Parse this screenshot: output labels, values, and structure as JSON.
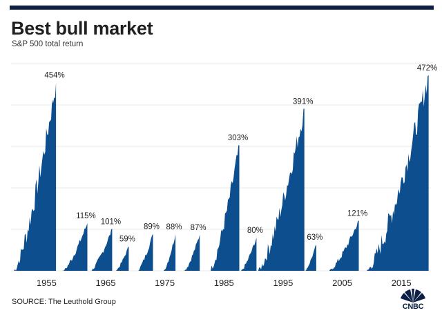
{
  "header": {
    "title": "Best bull market",
    "subtitle": "S&P 500 total return"
  },
  "footer": {
    "source": "SOURCE: The Leuthold Group",
    "logo": "CNBC"
  },
  "colors": {
    "series": "#0d4e8e",
    "grid": "#e8e8e8",
    "text": "#1f1f1f"
  },
  "chart_data": {
    "type": "area",
    "title": "Best bull market",
    "subtitle": "S&P 500 total return",
    "xlabel": "",
    "ylabel": "",
    "unit": "%",
    "xlim": [
      1949,
      2020
    ],
    "ylim": [
      0,
      500
    ],
    "y_gridlines": [
      100,
      200,
      300,
      400,
      500
    ],
    "grid": "horizontal",
    "x_ticks": [
      1955,
      1965,
      1975,
      1985,
      1995,
      2005,
      2015
    ],
    "bull_markets": [
      {
        "start": 1949.5,
        "end": 1956.6,
        "peak": 454,
        "label": "454%"
      },
      {
        "start": 1957.8,
        "end": 1961.9,
        "peak": 115,
        "label": "115%"
      },
      {
        "start": 1962.5,
        "end": 1966.1,
        "peak": 101,
        "label": "101%"
      },
      {
        "start": 1966.7,
        "end": 1968.9,
        "peak": 59,
        "label": "59%"
      },
      {
        "start": 1970.4,
        "end": 1973.0,
        "peak": 89,
        "label": "89%"
      },
      {
        "start": 1974.8,
        "end": 1976.8,
        "peak": 88,
        "label": "88%"
      },
      {
        "start": 1978.3,
        "end": 1980.9,
        "peak": 87,
        "label": "87%"
      },
      {
        "start": 1982.6,
        "end": 1987.6,
        "peak": 303,
        "label": "303%"
      },
      {
        "start": 1987.9,
        "end": 1990.5,
        "peak": 80,
        "label": "80%"
      },
      {
        "start": 1990.8,
        "end": 1998.6,
        "peak": 391,
        "label": "391%"
      },
      {
        "start": 1998.7,
        "end": 2000.6,
        "peak": 63,
        "label": "63%"
      },
      {
        "start": 2002.8,
        "end": 2007.8,
        "peak": 121,
        "label": "121%"
      },
      {
        "start": 2009.2,
        "end": 2019.6,
        "peak": 472,
        "label": "472%"
      }
    ]
  }
}
